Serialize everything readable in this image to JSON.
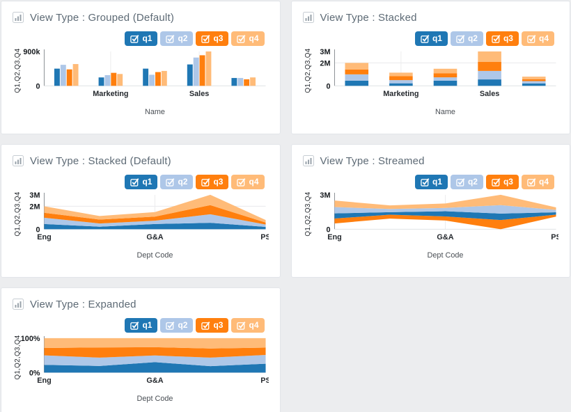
{
  "app": {
    "background": "#ecedef",
    "panel_background": "#ffffff",
    "panel_border": "#e2e5e9",
    "title_color": "#5d6a75"
  },
  "legend": {
    "items": [
      {
        "label": "q1",
        "color": "#1f77b4",
        "checked": true
      },
      {
        "label": "q2",
        "color": "#aec7e8",
        "checked": true
      },
      {
        "label": "q3",
        "color": "#ff7f0e",
        "checked": true
      },
      {
        "label": "q4",
        "color": "#ffbb78",
        "checked": true
      }
    ]
  },
  "chart_data": [
    {
      "type": "bar",
      "mode": "grouped",
      "title": "View Type : Grouped (Default)",
      "categories": [
        "Eng",
        "Marketing",
        "G&A",
        "Sales",
        "PS"
      ],
      "x_ticks_shown": [
        "Marketing",
        "Sales"
      ],
      "series": [
        {
          "name": "q1",
          "values": [
            450,
            220,
            450,
            560,
            205
          ]
        },
        {
          "name": "q2",
          "values": [
            550,
            280,
            290,
            740,
            205
          ]
        },
        {
          "name": "q3",
          "values": [
            430,
            340,
            360,
            800,
            170
          ]
        },
        {
          "name": "q4",
          "values": [
            570,
            310,
            390,
            900,
            220
          ]
        }
      ],
      "value_unit": "thousands",
      "xlabel": "Name",
      "ylabel": "Q1,Q2,Q3,Q4",
      "ylim": [
        0,
        900
      ],
      "yticks": [
        {
          "value": 900,
          "label": "900k"
        },
        {
          "value": 0,
          "label": "0"
        }
      ],
      "gridlines": {
        "vertical_at": [
          "Marketing",
          "Sales"
        ],
        "horizontal_at": []
      }
    },
    {
      "type": "bar",
      "mode": "stacked",
      "title": "View Type : Stacked",
      "categories": [
        "Eng",
        "Marketing",
        "G&A",
        "Sales",
        "PS"
      ],
      "x_ticks_shown": [
        "Marketing",
        "Sales"
      ],
      "series": [
        {
          "name": "q1",
          "values": [
            450,
            220,
            450,
            560,
            205
          ]
        },
        {
          "name": "q2",
          "values": [
            550,
            280,
            290,
            740,
            205
          ]
        },
        {
          "name": "q3",
          "values": [
            430,
            340,
            360,
            800,
            170
          ]
        },
        {
          "name": "q4",
          "values": [
            570,
            310,
            390,
            900,
            220
          ]
        }
      ],
      "value_unit": "thousands",
      "xlabel": "Name",
      "ylabel": "Q1,Q2,Q3,Q4",
      "ylim": [
        0,
        3000
      ],
      "yticks": [
        {
          "value": 3000,
          "label": "3M"
        },
        {
          "value": 2000,
          "label": "2M"
        },
        {
          "value": 0,
          "label": "0"
        }
      ],
      "gridlines": {
        "vertical_at": [
          "Marketing",
          "Sales"
        ],
        "horizontal_at": [
          2000
        ]
      }
    },
    {
      "type": "area",
      "mode": "stacked-area",
      "title": "View Type : Stacked (Default)",
      "categories": [
        "Eng",
        "Marketing",
        "G&A",
        "Sales",
        "PS"
      ],
      "x_ticks_shown": [
        "Eng",
        "G&A",
        "PS"
      ],
      "series": [
        {
          "name": "q1",
          "values": [
            450,
            220,
            450,
            560,
            205
          ]
        },
        {
          "name": "q2",
          "values": [
            550,
            280,
            290,
            740,
            205
          ]
        },
        {
          "name": "q3",
          "values": [
            430,
            340,
            360,
            800,
            170
          ]
        },
        {
          "name": "q4",
          "values": [
            570,
            310,
            390,
            900,
            220
          ]
        }
      ],
      "value_unit": "thousands",
      "xlabel": "Dept Code",
      "ylabel": "Q1,Q2,Q3,Q4",
      "ylim": [
        0,
        3000
      ],
      "yticks": [
        {
          "value": 3000,
          "label": "3M"
        },
        {
          "value": 2000,
          "label": "2M"
        },
        {
          "value": 0,
          "label": "0"
        }
      ],
      "gridlines": {
        "vertical_at": [
          "G&A"
        ],
        "horizontal_at": [
          2000
        ]
      }
    },
    {
      "type": "area",
      "mode": "streamed",
      "title": "View Type : Streamed",
      "categories": [
        "Eng",
        "Marketing",
        "G&A",
        "Sales",
        "PS"
      ],
      "x_ticks_shown": [
        "Eng",
        "G&A",
        "PS"
      ],
      "series": [
        {
          "name": "q1",
          "values": [
            450,
            220,
            450,
            560,
            205
          ]
        },
        {
          "name": "q2",
          "values": [
            550,
            280,
            290,
            740,
            205
          ]
        },
        {
          "name": "q3",
          "values": [
            430,
            340,
            360,
            800,
            170
          ]
        },
        {
          "name": "q4",
          "values": [
            570,
            310,
            390,
            900,
            220
          ]
        }
      ],
      "value_unit": "thousands",
      "stack_order": [
        "q3",
        "q1",
        "q2",
        "q4"
      ],
      "baseline": "centered",
      "xlabel": "Dept Code",
      "ylabel": "Q1,Q2,Q3,Q4",
      "ylim": [
        0,
        3000
      ],
      "yticks": [
        {
          "value": 3000,
          "label": "3M"
        },
        {
          "value": 0,
          "label": "0"
        }
      ],
      "gridlines": {
        "vertical_at": [
          "G&A"
        ],
        "horizontal_at": []
      }
    },
    {
      "type": "area",
      "mode": "expanded",
      "title": "View Type : Expanded",
      "categories": [
        "Eng",
        "Marketing",
        "G&A",
        "Sales",
        "PS"
      ],
      "x_ticks_shown": [
        "Eng",
        "G&A",
        "PS"
      ],
      "series": [
        {
          "name": "q1",
          "values": [
            450,
            220,
            450,
            560,
            205
          ]
        },
        {
          "name": "q2",
          "values": [
            550,
            280,
            290,
            740,
            205
          ]
        },
        {
          "name": "q3",
          "values": [
            430,
            340,
            360,
            800,
            170
          ]
        },
        {
          "name": "q4",
          "values": [
            570,
            310,
            390,
            900,
            220
          ]
        }
      ],
      "value_unit": "thousands",
      "normalize": true,
      "xlabel": "Dept Code",
      "ylabel": "Q1,Q2,Q3,Q4",
      "ylim": [
        0,
        100
      ],
      "yticks": [
        {
          "value": 100,
          "label": "100%"
        },
        {
          "value": 0,
          "label": "0%"
        }
      ],
      "gridlines": {
        "vertical_at": [
          "G&A"
        ],
        "horizontal_at": []
      }
    }
  ]
}
